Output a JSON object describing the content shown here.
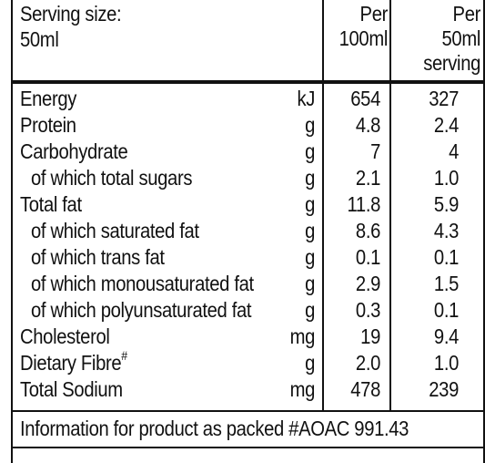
{
  "header": {
    "serving_label_line1": "Serving size:",
    "serving_label_line2": "50ml",
    "col1_line1": "Per",
    "col1_line2": "100ml",
    "col2_line1": "Per",
    "col2_line2": "50ml",
    "col2_line3": "serving"
  },
  "rows": [
    {
      "name": "Energy",
      "unit": "kJ",
      "per100": "654",
      "perServing": "327",
      "indent": false
    },
    {
      "name": "Protein",
      "unit": "g",
      "per100": "4.8",
      "perServing": "2.4",
      "indent": false
    },
    {
      "name": "Carbohydrate",
      "unit": "g",
      "per100": "7",
      "perServing": "4",
      "indent": false
    },
    {
      "name": "of which total sugars",
      "unit": "g",
      "per100": "2.1",
      "perServing": "1.0",
      "indent": true
    },
    {
      "name": "Total fat",
      "unit": "g",
      "per100": "11.8",
      "perServing": "5.9",
      "indent": false
    },
    {
      "name": "of which saturated fat",
      "unit": "g",
      "per100": "8.6",
      "perServing": "4.3",
      "indent": true
    },
    {
      "name": "of which trans fat",
      "unit": "g",
      "per100": "0.1",
      "perServing": "0.1",
      "indent": true
    },
    {
      "name": "of which monousaturated fat",
      "unit": "g",
      "per100": "2.9",
      "perServing": "1.5",
      "indent": true
    },
    {
      "name": "of which polyunsaturated fat",
      "unit": "g",
      "per100": "0.3",
      "perServing": "0.1",
      "indent": true
    },
    {
      "name": "Cholesterol",
      "unit": "mg",
      "per100": "19",
      "perServing": "9.4",
      "indent": false
    },
    {
      "name": "Dietary Fibre",
      "name_sup": "#",
      "unit": "g",
      "per100": "2.0",
      "perServing": "1.0",
      "indent": false
    },
    {
      "name": "Total Sodium",
      "unit": "mg",
      "per100": "478",
      "perServing": "239",
      "indent": false
    }
  ],
  "footnote": "Information for product as packed #AOAC 991.43"
}
